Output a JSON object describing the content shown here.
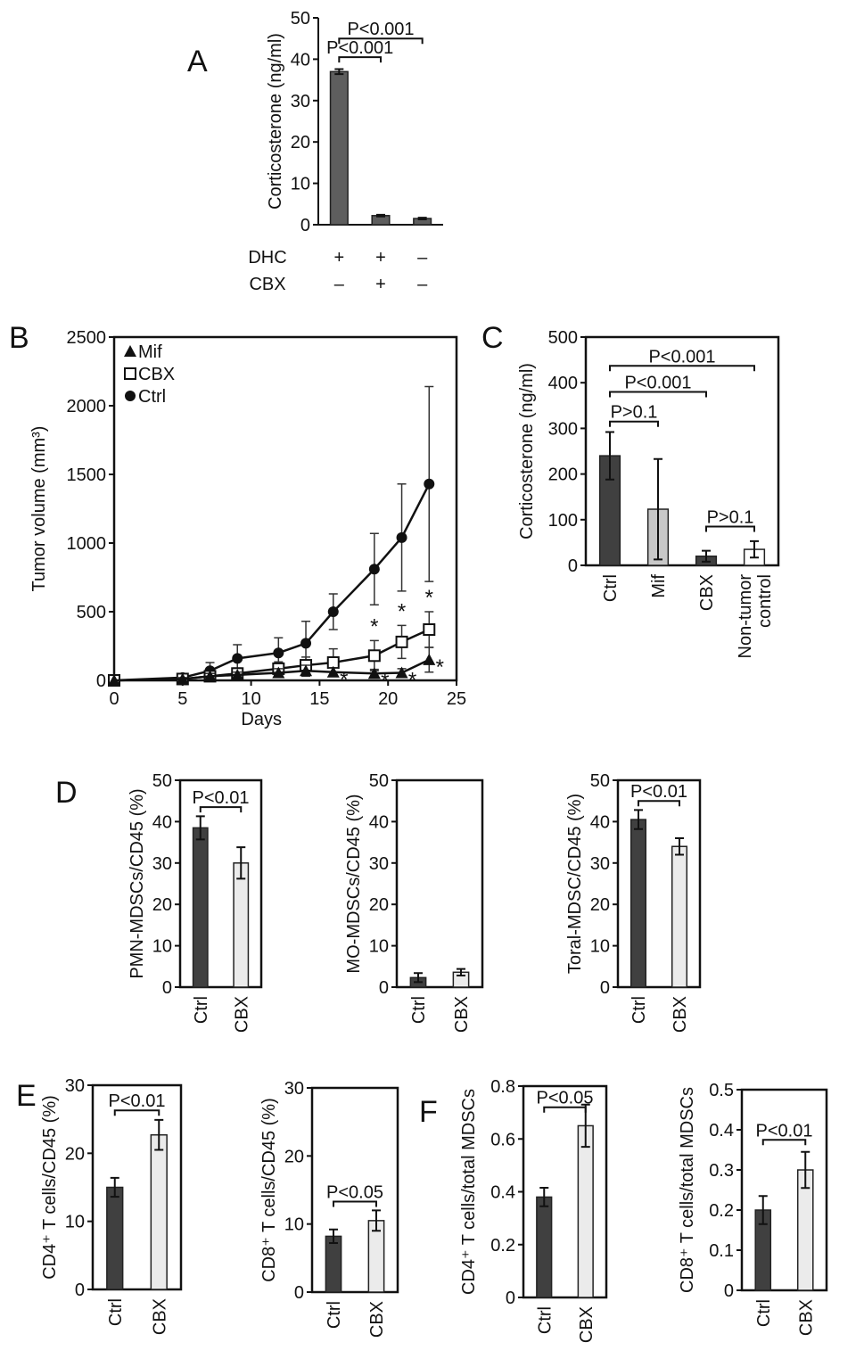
{
  "colors": {
    "dark": "#404040",
    "light": "#ebebeb",
    "mid": "#c8c8c8",
    "a_bar": "#5e5e5e",
    "white": "#ffffff",
    "axis": "#111111"
  },
  "chart_data": [
    {
      "panel": "A",
      "type": "bar",
      "ylabel": "Corticosterone (ng/ml)",
      "ylim": [
        0,
        50
      ],
      "yticks": [
        0,
        10,
        20,
        30,
        40,
        50
      ],
      "rows": [
        {
          "label": "DHC",
          "values": [
            "+",
            "+",
            "–"
          ]
        },
        {
          "label": "CBX",
          "values": [
            "–",
            "+",
            "–"
          ]
        }
      ],
      "values": [
        37,
        2.2,
        1.5
      ],
      "errors": [
        0.6,
        0.2,
        0.2
      ],
      "bar_colors": [
        "a_bar",
        "a_bar",
        "a_bar"
      ],
      "brackets": [
        {
          "from": 0,
          "to": 2,
          "y": 45,
          "label": "P<0.001"
        },
        {
          "from": 0,
          "to": 1,
          "y": 40.5,
          "label": "P<0.001"
        }
      ]
    },
    {
      "panel": "B",
      "type": "line",
      "xlabel": "Days",
      "ylabel": "Tumor volume (mm³)",
      "xlim": [
        0,
        25
      ],
      "ylim": [
        0,
        2500
      ],
      "xticks": [
        0,
        5,
        10,
        15,
        20,
        25
      ],
      "yticks": [
        0,
        500,
        1000,
        1500,
        2000,
        2500
      ],
      "legend_position": "top-left",
      "series": [
        {
          "name": "Mif",
          "marker": "triangle",
          "x": [
            0,
            5,
            7,
            9,
            12,
            14,
            16,
            19,
            21,
            23
          ],
          "y": [
            0,
            10,
            30,
            40,
            55,
            70,
            60,
            50,
            55,
            150
          ],
          "err": [
            0,
            10,
            20,
            20,
            30,
            40,
            30,
            30,
            30,
            90
          ],
          "stars": [
            false,
            false,
            false,
            false,
            false,
            false,
            true,
            true,
            true,
            true
          ]
        },
        {
          "name": "CBX",
          "marker": "square",
          "x": [
            0,
            5,
            7,
            9,
            12,
            14,
            16,
            19,
            21,
            23
          ],
          "y": [
            0,
            10,
            30,
            50,
            85,
            110,
            130,
            180,
            280,
            370
          ],
          "err": [
            0,
            20,
            30,
            40,
            50,
            60,
            100,
            110,
            120,
            130
          ],
          "stars": [
            false,
            false,
            false,
            false,
            false,
            false,
            false,
            true,
            true,
            true
          ]
        },
        {
          "name": "Ctrl",
          "marker": "circle",
          "x": [
            0,
            5,
            7,
            9,
            12,
            14,
            16,
            19,
            21,
            23
          ],
          "y": [
            0,
            20,
            70,
            160,
            200,
            270,
            500,
            810,
            1040,
            1430
          ],
          "err": [
            0,
            30,
            60,
            100,
            110,
            160,
            130,
            260,
            390,
            710
          ]
        }
      ]
    },
    {
      "panel": "C",
      "type": "bar",
      "ylabel": "Corticosterone (ng/ml)",
      "ylim": [
        0,
        500
      ],
      "yticks": [
        0,
        100,
        200,
        300,
        400,
        500
      ],
      "categories": [
        "Ctrl",
        "Mif",
        "CBX",
        "Non-tumor control"
      ],
      "values": [
        240,
        123,
        20,
        35
      ],
      "errors": [
        52,
        110,
        12,
        18
      ],
      "bar_colors": [
        "dark",
        "mid",
        "dark",
        "white"
      ],
      "brackets": [
        {
          "from": 0,
          "to": 3,
          "y": 437,
          "label": "P<0.001"
        },
        {
          "from": 0,
          "to": 2,
          "y": 380,
          "label": "P<0.001"
        },
        {
          "from": 0,
          "to": 1,
          "y": 315,
          "label": "P>0.1"
        },
        {
          "from": 2,
          "to": 3,
          "y": 85,
          "label": "P>0.1"
        }
      ]
    },
    {
      "panel": "D",
      "type": "bar",
      "ylabel": "PMN-MDSCs/CD45 (%)",
      "ylim": [
        0,
        50
      ],
      "yticks": [
        0,
        10,
        20,
        30,
        40,
        50
      ],
      "categories": [
        "Ctrl",
        "CBX"
      ],
      "values": [
        38.5,
        30
      ],
      "errors": [
        2.8,
        3.8
      ],
      "bar_colors": [
        "dark",
        "light"
      ],
      "brackets": [
        {
          "from": 0,
          "to": 1,
          "y": 43.5,
          "label": "P<0.01"
        }
      ]
    },
    {
      "panel": "",
      "type": "bar",
      "ylabel": "MO-MDSCs/CD45 (%)",
      "ylim": [
        0,
        50
      ],
      "yticks": [
        0,
        10,
        20,
        30,
        40,
        50
      ],
      "categories": [
        "Ctrl",
        "CBX"
      ],
      "values": [
        2.3,
        3.6
      ],
      "errors": [
        1.1,
        0.8
      ],
      "bar_colors": [
        "dark",
        "light"
      ],
      "brackets": []
    },
    {
      "panel": "",
      "type": "bar",
      "ylabel": "Toral-MDSC/CD45 (%)",
      "ylim": [
        0,
        50
      ],
      "yticks": [
        0,
        10,
        20,
        30,
        40,
        50
      ],
      "categories": [
        "Ctrl",
        "CBX"
      ],
      "values": [
        40.5,
        34
      ],
      "errors": [
        2.3,
        2
      ],
      "bar_colors": [
        "dark",
        "light"
      ],
      "brackets": [
        {
          "from": 0,
          "to": 1,
          "y": 45,
          "label": "P<0.01"
        }
      ]
    },
    {
      "panel": "E",
      "type": "bar",
      "ylabel": "CD4⁺ T cells/CD45 (%)",
      "ylim": [
        0,
        30
      ],
      "yticks": [
        0,
        10,
        20,
        30
      ],
      "categories": [
        "Ctrl",
        "CBX"
      ],
      "values": [
        15,
        22.7
      ],
      "errors": [
        1.4,
        2.2
      ],
      "bar_colors": [
        "dark",
        "light"
      ],
      "brackets": [
        {
          "from": 0,
          "to": 1,
          "y": 26.3,
          "label": "P<0.01"
        }
      ]
    },
    {
      "panel": "",
      "type": "bar",
      "ylabel": "CD8⁺ T cells/CD45 (%)",
      "ylim": [
        0,
        30
      ],
      "yticks": [
        0,
        10,
        20,
        30
      ],
      "categories": [
        "Ctrl",
        "CBX"
      ],
      "values": [
        8.2,
        10.5
      ],
      "errors": [
        1,
        1.5
      ],
      "bar_colors": [
        "dark",
        "light"
      ],
      "brackets": [
        {
          "from": 0,
          "to": 1,
          "y": 13.3,
          "label": "P<0.05"
        }
      ]
    },
    {
      "panel": "F",
      "type": "bar",
      "ylabel": "CD4⁺ T cells/total MDSCs",
      "ylim": [
        0,
        0.8
      ],
      "yticks": [
        0,
        0.2,
        0.4,
        0.6,
        0.8
      ],
      "categories": [
        "Ctrl",
        "CBX"
      ],
      "values": [
        0.38,
        0.65
      ],
      "errors": [
        0.035,
        0.08
      ],
      "bar_colors": [
        "dark",
        "light"
      ],
      "brackets": [
        {
          "from": 0,
          "to": 1,
          "y": 0.72,
          "label": "P<0.05"
        }
      ]
    },
    {
      "panel": "",
      "type": "bar",
      "ylabel": "CD8⁺ T cells/total MDSCs",
      "ylim": [
        0,
        0.5
      ],
      "yticks": [
        0,
        0.1,
        0.2,
        0.3,
        0.4,
        0.5
      ],
      "categories": [
        "Ctrl",
        "CBX"
      ],
      "values": [
        0.2,
        0.3
      ],
      "errors": [
        0.035,
        0.045
      ],
      "bar_colors": [
        "dark",
        "light"
      ],
      "brackets": [
        {
          "from": 0,
          "to": 1,
          "y": 0.375,
          "label": "P<0.01"
        }
      ]
    }
  ]
}
